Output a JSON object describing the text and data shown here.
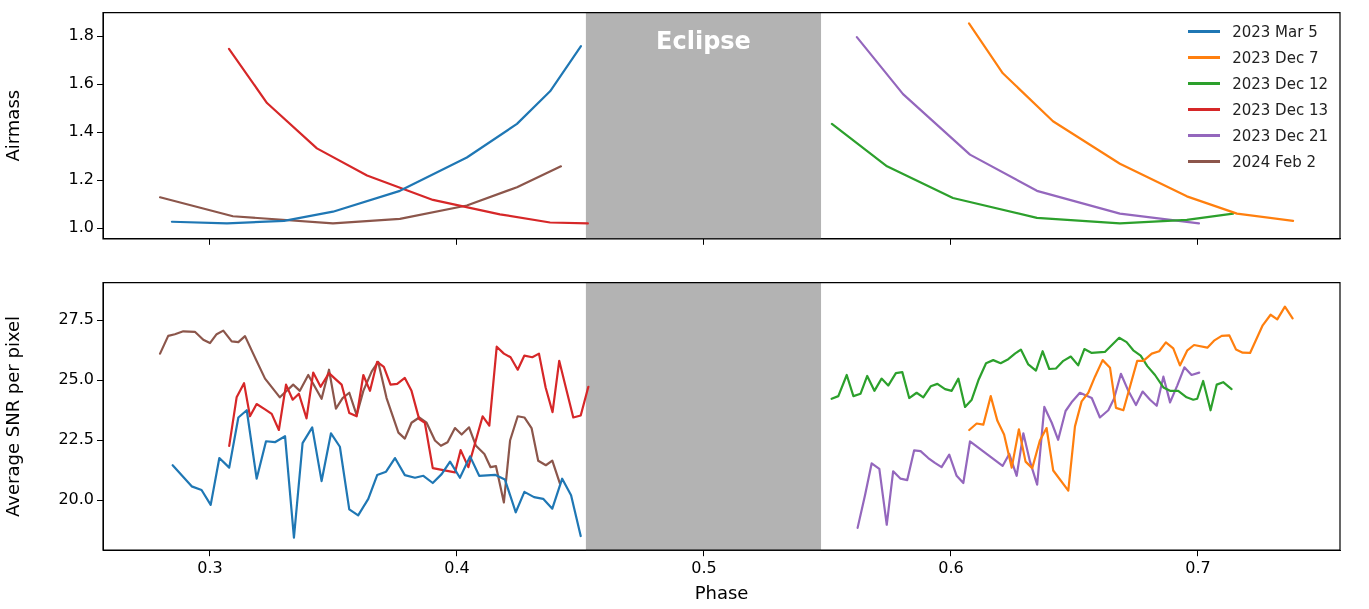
{
  "chart_data": [
    {
      "type": "line",
      "ylabel": "Airmass",
      "xlim": [
        0.2567,
        0.7575
      ],
      "ylim": [
        0.955,
        1.898
      ],
      "xticks": [
        0.3,
        0.4,
        0.5,
        0.6,
        0.7
      ],
      "yticks": [
        {
          "value": 1,
          "label": "1.0"
        },
        {
          "value": 1.2,
          "label": "1.2"
        },
        {
          "value": 1.4,
          "label": "1.4"
        },
        {
          "value": 1.6,
          "label": "1.6"
        },
        {
          "value": 1.8,
          "label": "1.8"
        }
      ],
      "tick_labels": "y",
      "legend": "top right",
      "bands": [
        {
          "axis": "x",
          "from": 0.4522,
          "to": 0.5474,
          "label": "Eclipse",
          "color": "#b3b3b3"
        }
      ],
      "series": [
        {
          "name": "2023 Mar 5",
          "color": "#1f77b4",
          "x": [
            0.2846,
            0.3069,
            0.33,
            0.3498,
            0.3769,
            0.404,
            0.4243,
            0.4377,
            0.4502
          ],
          "values": [
            1.026,
            1.019,
            1.03,
            1.068,
            1.155,
            1.294,
            1.434,
            1.57,
            1.758
          ]
        },
        {
          "name": "2023 Dec 7",
          "color": "#ff7f0e",
          "x": [
            0.6073,
            0.621,
            0.6413,
            0.6684,
            0.6955,
            0.7158,
            0.7385
          ],
          "values": [
            1.853,
            1.645,
            1.445,
            1.268,
            1.132,
            1.06,
            1.03
          ]
        },
        {
          "name": "2023 Dec 12",
          "color": "#2ca02c",
          "x": [
            0.5518,
            0.5741,
            0.6008,
            0.6348,
            0.6684,
            0.6955,
            0.7142
          ],
          "values": [
            1.434,
            1.257,
            1.125,
            1.042,
            1.019,
            1.034,
            1.06
          ]
        },
        {
          "name": "2023 Dec 13",
          "color": "#d62728",
          "x": [
            0.3077,
            0.3231,
            0.3433,
            0.3636,
            0.3903,
            0.4174,
            0.4377,
            0.453
          ],
          "values": [
            1.747,
            1.521,
            1.332,
            1.219,
            1.117,
            1.057,
            1.023,
            1.019
          ]
        },
        {
          "name": "2023 Dec 21",
          "color": "#9467bd",
          "x": [
            0.5619,
            0.5806,
            0.6077,
            0.6348,
            0.6684,
            0.7004
          ],
          "values": [
            1.796,
            1.558,
            1.306,
            1.155,
            1.06,
            1.019
          ]
        },
        {
          "name": "2024 Feb 2",
          "color": "#8c564b",
          "x": [
            0.2798,
            0.3093,
            0.3498,
            0.3769,
            0.404,
            0.4243,
            0.4421
          ],
          "values": [
            1.128,
            1.049,
            1.019,
            1.038,
            1.094,
            1.17,
            1.257
          ]
        }
      ]
    },
    {
      "type": "line",
      "xlabel": "Phase",
      "ylabel": "Average SNR per pixel",
      "xlim": [
        0.2567,
        0.7575
      ],
      "ylim": [
        17.92,
        29.07
      ],
      "xticks": [
        0.3,
        0.4,
        0.5,
        0.6,
        0.7
      ],
      "yticks": [
        {
          "value": 20,
          "label": "20.0"
        },
        {
          "value": 22.5,
          "label": "22.5"
        },
        {
          "value": 25,
          "label": "25.0"
        },
        {
          "value": 27.5,
          "label": "27.5"
        }
      ],
      "bands": [
        {
          "axis": "x",
          "from": 0.4522,
          "to": 0.5474,
          "color": "#b3b3b3"
        }
      ],
      "series": [
        {
          "color": "#1f77b4",
          "x": [
            0.2849,
            0.2926,
            0.2966,
            0.3003,
            0.3038,
            0.3078,
            0.3115,
            0.3149,
            0.3189,
            0.3227,
            0.3263,
            0.3304,
            0.334,
            0.3375,
            0.3414,
            0.3452,
            0.349,
            0.3526,
            0.3564,
            0.36,
            0.3641,
            0.3677,
            0.3713,
            0.3749,
            0.3789,
            0.383,
            0.3864,
            0.3902,
            0.3938,
            0.3972,
            0.4012,
            0.4053,
            0.409,
            0.4154,
            0.4194,
            0.4238,
            0.4273,
            0.4312,
            0.4349,
            0.4386,
            0.4426,
            0.4462,
            0.4501
          ],
          "values": [
            21.46,
            20.58,
            20.43,
            19.81,
            21.76,
            21.36,
            23.45,
            23.75,
            20.9,
            22.46,
            22.42,
            22.67,
            18.44,
            22.38,
            23.04,
            20.8,
            22.79,
            22.23,
            19.62,
            19.37,
            20.06,
            21.05,
            21.19,
            21.76,
            21.05,
            20.94,
            21.02,
            20.72,
            21.09,
            21.61,
            20.94,
            21.83,
            21.02,
            21.06,
            20.87,
            19.5,
            20.35,
            20.13,
            20.06,
            19.65,
            20.9,
            20.21,
            18.51
          ]
        },
        {
          "color": "#ff7f0e",
          "x": [
            0.6074,
            0.6104,
            0.6131,
            0.6161,
            0.6188,
            0.6215,
            0.6246,
            0.6275,
            0.6302,
            0.6329,
            0.636,
            0.6387,
            0.6414,
            0.6475,
            0.6502,
            0.6529,
            0.6556,
            0.6583,
            0.6614,
            0.6644,
            0.6668,
            0.6698,
            0.6754,
            0.6779,
            0.6813,
            0.6843,
            0.687,
            0.69,
            0.6927,
            0.6957,
            0.6984,
            0.7038,
            0.7065,
            0.7096,
            0.7127,
            0.7154,
            0.7181,
            0.7211,
            0.7262,
            0.7294,
            0.7321,
            0.7352,
            0.7383
          ],
          "values": [
            22.93,
            23.2,
            23.15,
            24.34,
            23.31,
            22.74,
            21.36,
            22.96,
            21.61,
            21.34,
            22.49,
            23.01,
            21.24,
            20.4,
            23.08,
            24.12,
            24.48,
            25.15,
            25.84,
            25.52,
            23.85,
            23.75,
            25.81,
            25.81,
            26.11,
            26.21,
            26.58,
            26.33,
            25.62,
            26.25,
            26.47,
            26.36,
            26.65,
            26.85,
            26.87,
            26.28,
            26.15,
            26.14,
            27.29,
            27.73,
            27.54,
            28.07,
            27.58
          ]
        },
        {
          "color": "#2ca02c",
          "x": [
            0.5517,
            0.5544,
            0.5578,
            0.5605,
            0.5634,
            0.5661,
            0.569,
            0.5719,
            0.5746,
            0.5777,
            0.5803,
            0.5831,
            0.5861,
            0.5888,
            0.5918,
            0.5945,
            0.5976,
            0.6003,
            0.603,
            0.6057,
            0.6084,
            0.6111,
            0.6142,
            0.6171,
            0.6201,
            0.6232,
            0.6259,
            0.6283,
            0.6313,
            0.6344,
            0.6371,
            0.6398,
            0.6425,
            0.6455,
            0.6485,
            0.6515,
            0.654,
            0.657,
            0.6623,
            0.6681,
            0.6711,
            0.6738,
            0.6768,
            0.6795,
            0.6826,
            0.686,
            0.6887,
            0.692,
            0.6954,
            0.6981,
            0.6997,
            0.7021,
            0.7051,
            0.7076,
            0.7102,
            0.7136
          ],
          "values": [
            24.23,
            24.34,
            25.22,
            24.34,
            24.44,
            25.18,
            24.56,
            25.07,
            24.78,
            25.3,
            25.34,
            24.26,
            24.48,
            24.29,
            24.75,
            24.85,
            24.63,
            24.56,
            25.07,
            23.89,
            24.19,
            25.0,
            25.71,
            25.84,
            25.71,
            25.88,
            26.11,
            26.28,
            25.66,
            25.4,
            26.21,
            25.47,
            25.49,
            25.81,
            25.99,
            25.62,
            26.3,
            26.14,
            26.18,
            26.77,
            26.59,
            26.25,
            26.03,
            25.59,
            25.22,
            24.7,
            24.56,
            24.56,
            24.29,
            24.19,
            24.23,
            24.97,
            23.75,
            24.82,
            24.92,
            24.63
          ]
        },
        {
          "color": "#d62728",
          "x": [
            0.3078,
            0.3108,
            0.3138,
            0.3162,
            0.3189,
            0.3223,
            0.325,
            0.3279,
            0.3308,
            0.3335,
            0.336,
            0.3391,
            0.3418,
            0.3448,
            0.3482,
            0.3506,
            0.3533,
            0.3564,
            0.3594,
            0.3621,
            0.3648,
            0.3677,
            0.3704,
            0.3731,
            0.3758,
            0.3789,
            0.3816,
            0.3847,
            0.387,
            0.3902,
            0.3992,
            0.4015,
            0.4046,
            0.4104,
            0.4131,
            0.4161,
            0.419,
            0.4217,
            0.4246,
            0.4273,
            0.4305,
            0.4332,
            0.4359,
            0.4387,
            0.4414,
            0.4444,
            0.4471,
            0.4501,
            0.4532
          ],
          "values": [
            22.27,
            24.29,
            24.88,
            23.5,
            24.01,
            23.79,
            23.6,
            22.93,
            24.82,
            24.19,
            24.44,
            23.41,
            25.32,
            24.73,
            25.3,
            25.07,
            24.82,
            23.64,
            23.5,
            25.22,
            24.56,
            25.77,
            25.56,
            24.82,
            24.85,
            25.1,
            24.56,
            23.38,
            23.23,
            21.34,
            21.16,
            22.09,
            21.38,
            23.5,
            23.11,
            26.4,
            26.11,
            25.96,
            25.44,
            26.03,
            25.96,
            26.11,
            24.7,
            23.67,
            25.81,
            24.56,
            23.45,
            23.53,
            24.73
          ]
        },
        {
          "color": "#9467bd",
          "x": [
            0.5622,
            0.5652,
            0.5679,
            0.571,
            0.574,
            0.5766,
            0.5796,
            0.5823,
            0.5851,
            0.5877,
            0.5908,
            0.5935,
            0.5962,
            0.5993,
            0.6023,
            0.605,
            0.6077,
            0.6209,
            0.6236,
            0.6266,
            0.6293,
            0.632,
            0.6349,
            0.6378,
            0.6408,
            0.6434,
            0.6464,
            0.6491,
            0.6522,
            0.657,
            0.6603,
            0.6637,
            0.666,
            0.6688,
            0.6718,
            0.6749,
            0.6776,
            0.6806,
            0.6833,
            0.686,
            0.6887,
            0.6916,
            0.6945,
            0.6974,
            0.7005
          ],
          "values": [
            18.85,
            20.21,
            21.54,
            21.31,
            18.98,
            21.21,
            20.9,
            20.84,
            22.08,
            22.05,
            21.76,
            21.56,
            21.38,
            21.9,
            21.02,
            20.72,
            22.45,
            21.43,
            21.93,
            21.02,
            22.79,
            21.61,
            20.65,
            23.89,
            23.23,
            22.52,
            23.72,
            24.12,
            24.48,
            24.26,
            23.45,
            23.75,
            24.23,
            25.27,
            24.56,
            23.97,
            24.53,
            24.19,
            23.94,
            25.15,
            24.08,
            24.78,
            25.54,
            25.22,
            25.32
          ]
        },
        {
          "color": "#8c564b",
          "x": [
            0.2798,
            0.2831,
            0.2858,
            0.2892,
            0.2939,
            0.2973,
            0.3,
            0.3027,
            0.3054,
            0.3088,
            0.3115,
            0.3142,
            0.3175,
            0.3223,
            0.3283,
            0.3337,
            0.3364,
            0.3398,
            0.3452,
            0.3482,
            0.351,
            0.3537,
            0.3564,
            0.3594,
            0.3621,
            0.3655,
            0.3681,
            0.3715,
            0.3763,
            0.3789,
            0.3816,
            0.3847,
            0.3877,
            0.3911,
            0.3935,
            0.3962,
            0.3992,
            0.4019,
            0.4049,
            0.4077,
            0.4111,
            0.4136,
            0.4158,
            0.419,
            0.4215,
            0.4246,
            0.4273,
            0.4302,
            0.4329,
            0.436,
            0.4386,
            0.4417
          ],
          "values": [
            26.11,
            26.85,
            26.92,
            27.04,
            27.02,
            26.69,
            26.55,
            26.92,
            27.07,
            26.62,
            26.59,
            26.84,
            26.11,
            25.07,
            24.29,
            24.82,
            24.56,
            25.22,
            24.23,
            25.44,
            23.82,
            24.26,
            24.48,
            23.55,
            24.56,
            25.37,
            25.77,
            24.26,
            22.82,
            22.57,
            23.23,
            23.45,
            23.23,
            22.49,
            22.27,
            22.42,
            23.01,
            22.74,
            23.04,
            22.27,
            21.93,
            21.38,
            21.42,
            19.91,
            22.49,
            23.5,
            23.45,
            23.01,
            21.65,
            21.46,
            21.65,
            20.69
          ]
        }
      ]
    }
  ]
}
